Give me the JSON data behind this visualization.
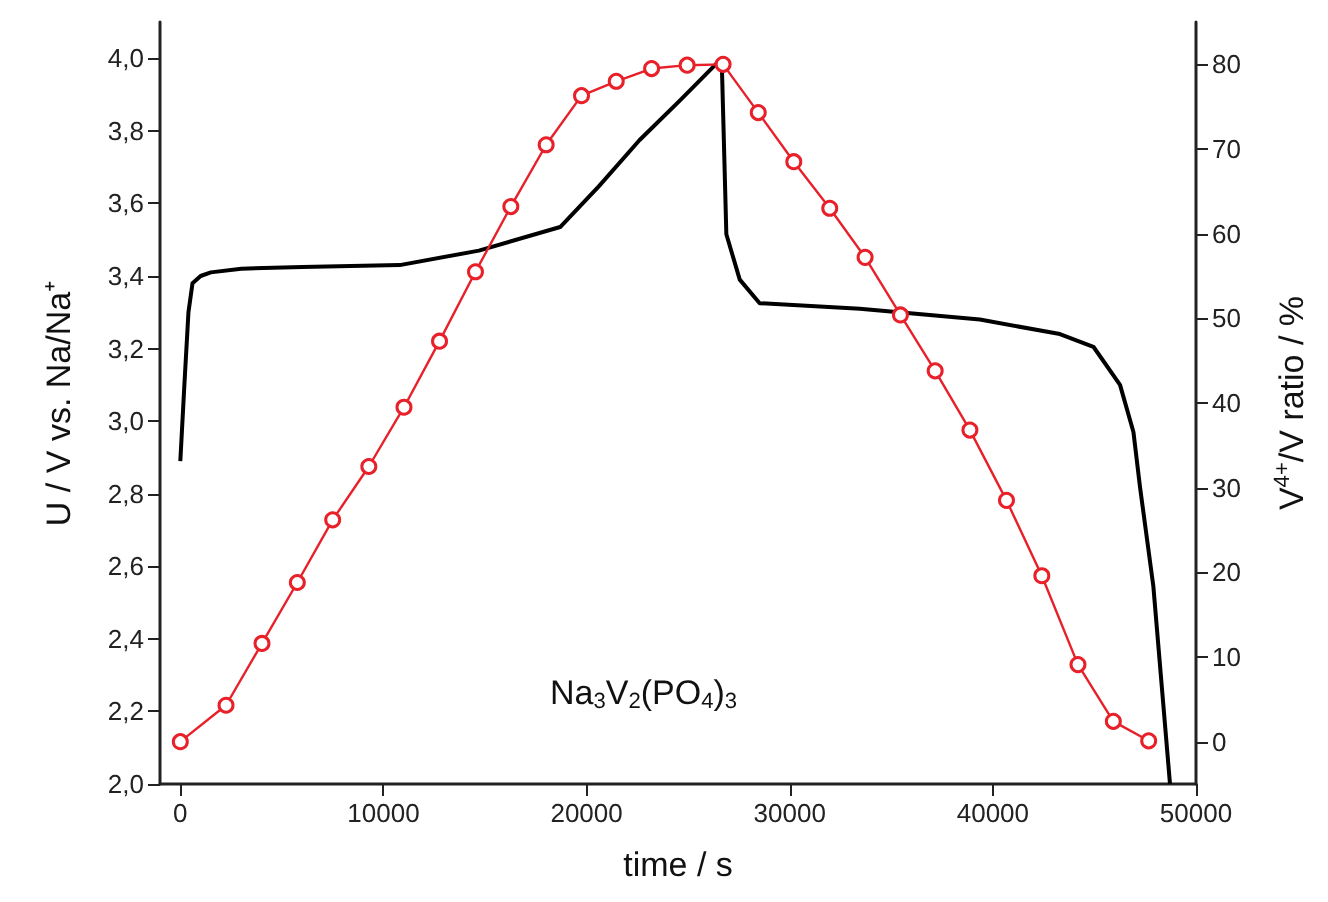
{
  "chart_data": {
    "type": "line",
    "xlabel": "time / s",
    "ylabel": "U / V vs. Na/Na⁺",
    "y2label": "V$^{4+}$/V ratio / %",
    "annotations": [
      "Na$_{3}$V$_{2}$(PO$_{4}$)$_{3}$"
    ],
    "xlim": [
      -1000,
      50000
    ],
    "xticks": [
      0,
      10000,
      20000,
      30000,
      40000,
      50000
    ],
    "ylim": [
      2.0,
      4.1
    ],
    "yticks": [
      {
        "value": 2.0,
        "label": "2,0"
      },
      {
        "value": 2.2,
        "label": "2,2"
      },
      {
        "value": 2.4,
        "label": "2,4"
      },
      {
        "value": 2.6,
        "label": "2,6"
      },
      {
        "value": 2.8,
        "label": "2,8"
      },
      {
        "value": 3.0,
        "label": "3,0"
      },
      {
        "value": 3.2,
        "label": "3,2"
      },
      {
        "value": 3.4,
        "label": "3,4"
      },
      {
        "value": 3.6,
        "label": "3,6"
      },
      {
        "value": 3.8,
        "label": "3,8"
      },
      {
        "value": 4.0,
        "label": "4,0"
      }
    ],
    "y2lim": [
      -5,
      85
    ],
    "y2ticks": [
      0,
      10,
      20,
      30,
      40,
      50,
      60,
      70,
      80
    ],
    "grid": false,
    "series": [
      {
        "color": "#000000",
        "marker": "none",
        "x": [
          0,
          200,
          400,
          600,
          1000,
          1500,
          3000,
          6000,
          10800,
          14700,
          18700,
          20600,
          22600,
          24600,
          26650,
          26880,
          27540,
          28520,
          33450,
          39360,
          43300,
          44950,
          46260,
          46920,
          47240,
          47900,
          48720
        ],
        "values": [
          2.89,
          3.1,
          3.3,
          3.38,
          3.4,
          3.41,
          3.42,
          3.425,
          3.43,
          3.47,
          3.535,
          3.647,
          3.774,
          3.884,
          4.0,
          3.515,
          3.39,
          3.325,
          3.31,
          3.28,
          3.24,
          3.205,
          3.1,
          2.97,
          2.82,
          2.545,
          2.0
        ]
      },
      {
        "color": "#e8202a",
        "marker": "circle",
        "axis": "y2",
        "x": [
          0,
          2250,
          4020,
          5760,
          7500,
          9280,
          11010,
          12760,
          14530,
          16270,
          18010,
          19750,
          21460,
          23200,
          24950,
          26720,
          28450,
          30200,
          31970,
          33710,
          35450,
          37160,
          38870,
          40670,
          42410,
          44190,
          45930,
          47670
        ],
        "values": [
          0,
          4.3,
          11.6,
          18.8,
          26.2,
          32.5,
          39.5,
          47.3,
          55.5,
          63.2,
          70.5,
          76.3,
          78.0,
          79.5,
          79.9,
          80.0,
          74.3,
          68.5,
          63.0,
          57.2,
          50.4,
          43.8,
          36.8,
          28.5,
          19.6,
          9.1,
          2.4,
          0.1
        ]
      }
    ]
  }
}
